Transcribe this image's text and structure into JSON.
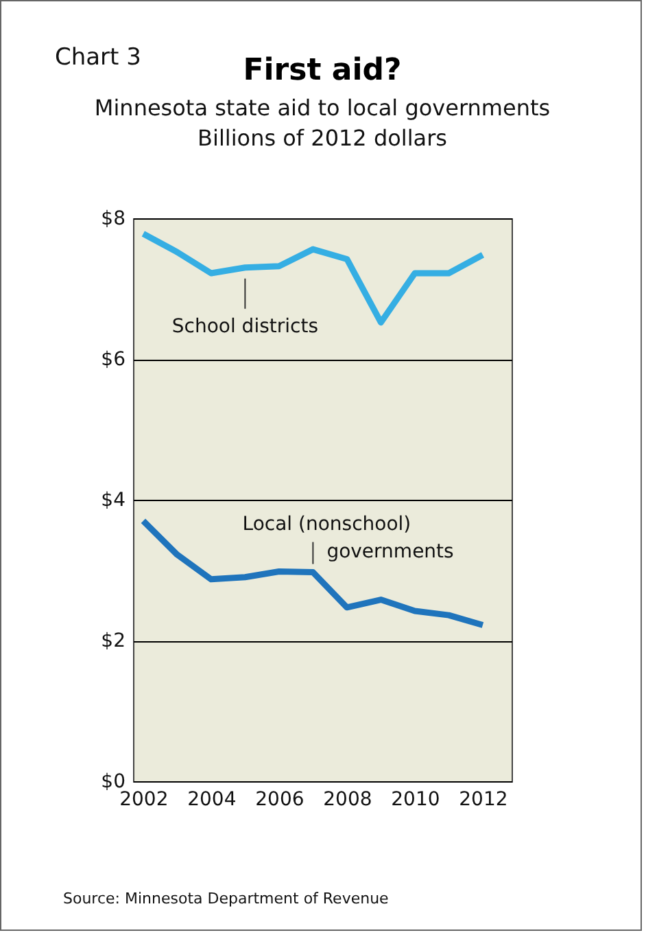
{
  "chart_data": {
    "type": "line",
    "title": "First aid?",
    "subtitle": "Minnesota state aid to local governments\nBillions of 2012 dollars",
    "annotations": [
      "Chart 3",
      "Source: Minnesota Department of Revenue"
    ],
    "x": [
      2002,
      2003,
      2004,
      2005,
      2006,
      2007,
      2008,
      2009,
      2010,
      2011,
      2012
    ],
    "series": [
      {
        "name": "School districts",
        "color": "#35aee3",
        "values": [
          7.78,
          7.52,
          7.22,
          7.3,
          7.32,
          7.56,
          7.42,
          6.52,
          7.22,
          7.22,
          7.48
        ]
      },
      {
        "name": "Local (nonschool) governments",
        "color": "#1f74bc",
        "values": [
          3.7,
          3.22,
          2.87,
          2.9,
          2.98,
          2.97,
          2.47,
          2.58,
          2.42,
          2.36,
          2.22
        ]
      }
    ],
    "xlim": [
      2001.7,
      2012.85
    ],
    "xticks": [
      2002,
      2004,
      2006,
      2008,
      2010,
      2012
    ],
    "ylim": [
      0,
      8
    ],
    "yticks": [
      {
        "value": 0,
        "label": "$0"
      },
      {
        "value": 2,
        "label": "$2"
      },
      {
        "value": 4,
        "label": "$4"
      },
      {
        "value": 6,
        "label": "$6"
      },
      {
        "value": 8,
        "label": "$8"
      }
    ],
    "grid": "y",
    "line_style": "solid",
    "marker": "none"
  }
}
